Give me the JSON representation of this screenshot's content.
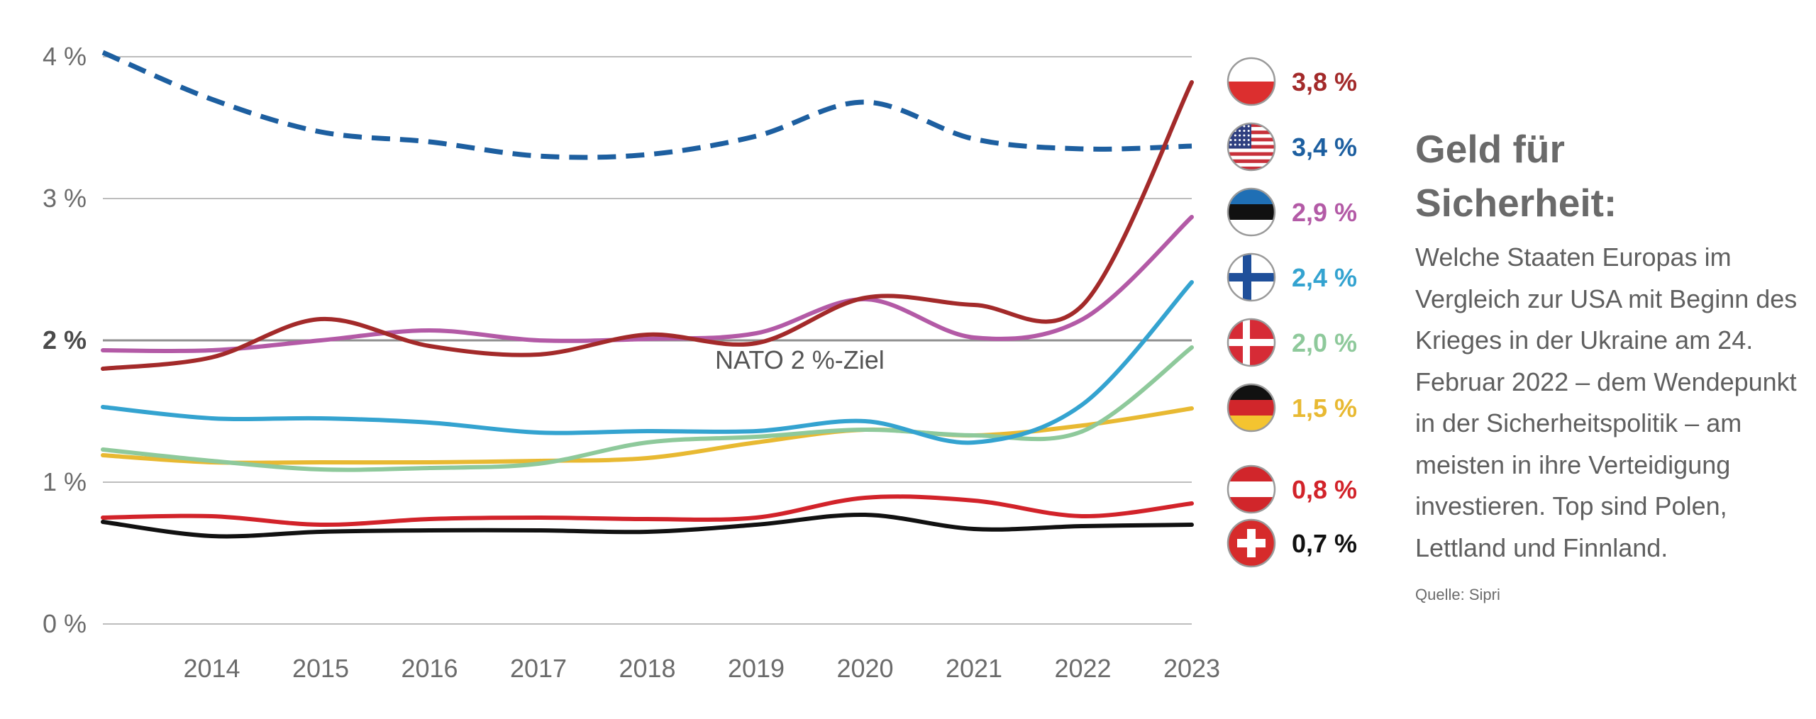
{
  "chart_data": {
    "type": "line",
    "x": [
      2013,
      2014,
      2015,
      2016,
      2017,
      2018,
      2019,
      2020,
      2021,
      2022,
      2023
    ],
    "xticks": [
      2014,
      2015,
      2016,
      2017,
      2018,
      2019,
      2020,
      2021,
      2022,
      2023
    ],
    "xtick_labels": [
      "2014",
      "2015",
      "2016",
      "2017",
      "2018",
      "2019",
      "2020",
      "2021",
      "2022",
      "2023"
    ],
    "xlim": [
      2013,
      2023
    ],
    "ylim": [
      0,
      4
    ],
    "yticks": [
      {
        "value": 0,
        "label": "0 %",
        "bold": false
      },
      {
        "value": 1,
        "label": "1 %",
        "bold": false
      },
      {
        "value": 2,
        "label": "2 %",
        "bold": true
      },
      {
        "value": 3,
        "label": "3 %",
        "bold": false
      },
      {
        "value": 4,
        "label": "4 %",
        "bold": false
      }
    ],
    "grid": true,
    "reference_line": {
      "value": 2,
      "label": "NATO 2 %-Ziel",
      "label_x": 2019.4
    },
    "series": [
      {
        "flag": "poland-flag-icon",
        "color": "#a32a2a",
        "dashed": false,
        "end_label": "3,8 %",
        "values": [
          1.8,
          1.88,
          2.15,
          1.96,
          1.9,
          2.04,
          1.98,
          2.3,
          2.25,
          2.25,
          3.82
        ]
      },
      {
        "flag": "usa-flag-icon",
        "color": "#1d5fa0",
        "dashed": true,
        "end_label": "3,4 %",
        "values": [
          4.03,
          3.7,
          3.47,
          3.4,
          3.3,
          3.31,
          3.44,
          3.68,
          3.42,
          3.35,
          3.37
        ]
      },
      {
        "flag": "estonia-flag-icon",
        "color": "#b35aa6",
        "dashed": false,
        "end_label": "2,9 %",
        "values": [
          1.93,
          1.93,
          2.0,
          2.07,
          2.0,
          2.01,
          2.05,
          2.29,
          2.02,
          2.15,
          2.87
        ]
      },
      {
        "flag": "finland-flag-icon",
        "color": "#34a3d0",
        "dashed": false,
        "end_label": "2,4 %",
        "values": [
          1.53,
          1.45,
          1.45,
          1.42,
          1.35,
          1.36,
          1.36,
          1.43,
          1.28,
          1.55,
          2.41
        ]
      },
      {
        "flag": "denmark-flag-icon",
        "color": "#8ec99b",
        "dashed": false,
        "end_label": "2,0 %",
        "values": [
          1.23,
          1.15,
          1.09,
          1.1,
          1.13,
          1.28,
          1.32,
          1.37,
          1.33,
          1.36,
          1.95
        ]
      },
      {
        "flag": "germany-flag-icon",
        "color": "#e8b932",
        "dashed": false,
        "end_label": "1,5 %",
        "values": [
          1.19,
          1.14,
          1.14,
          1.14,
          1.15,
          1.17,
          1.28,
          1.37,
          1.33,
          1.4,
          1.52
        ]
      },
      {
        "flag": "austria-flag-icon",
        "color": "#d2232a",
        "dashed": false,
        "end_label": "0,8 %",
        "values": [
          0.75,
          0.76,
          0.7,
          0.74,
          0.75,
          0.74,
          0.75,
          0.89,
          0.87,
          0.76,
          0.85
        ]
      },
      {
        "flag": "switzerland-flag-icon",
        "color": "#111111",
        "dashed": false,
        "end_label": "0,7 %",
        "values": [
          0.72,
          0.62,
          0.65,
          0.66,
          0.66,
          0.65,
          0.7,
          0.77,
          0.67,
          0.69,
          0.7
        ]
      }
    ]
  },
  "side": {
    "title": "Geld für Sicherheit:",
    "text": "Welche Staaten Europas im Vergleich zur USA mit Beginn des Krieges in der Ukraine am 24. Februar 2022 – dem Wendepunkt in der Sicherheitspolitik – am meisten in ihre Verteidigung investieren. Top sind Polen, Lettland und Finnland.",
    "source": "Quelle: Sipri"
  }
}
